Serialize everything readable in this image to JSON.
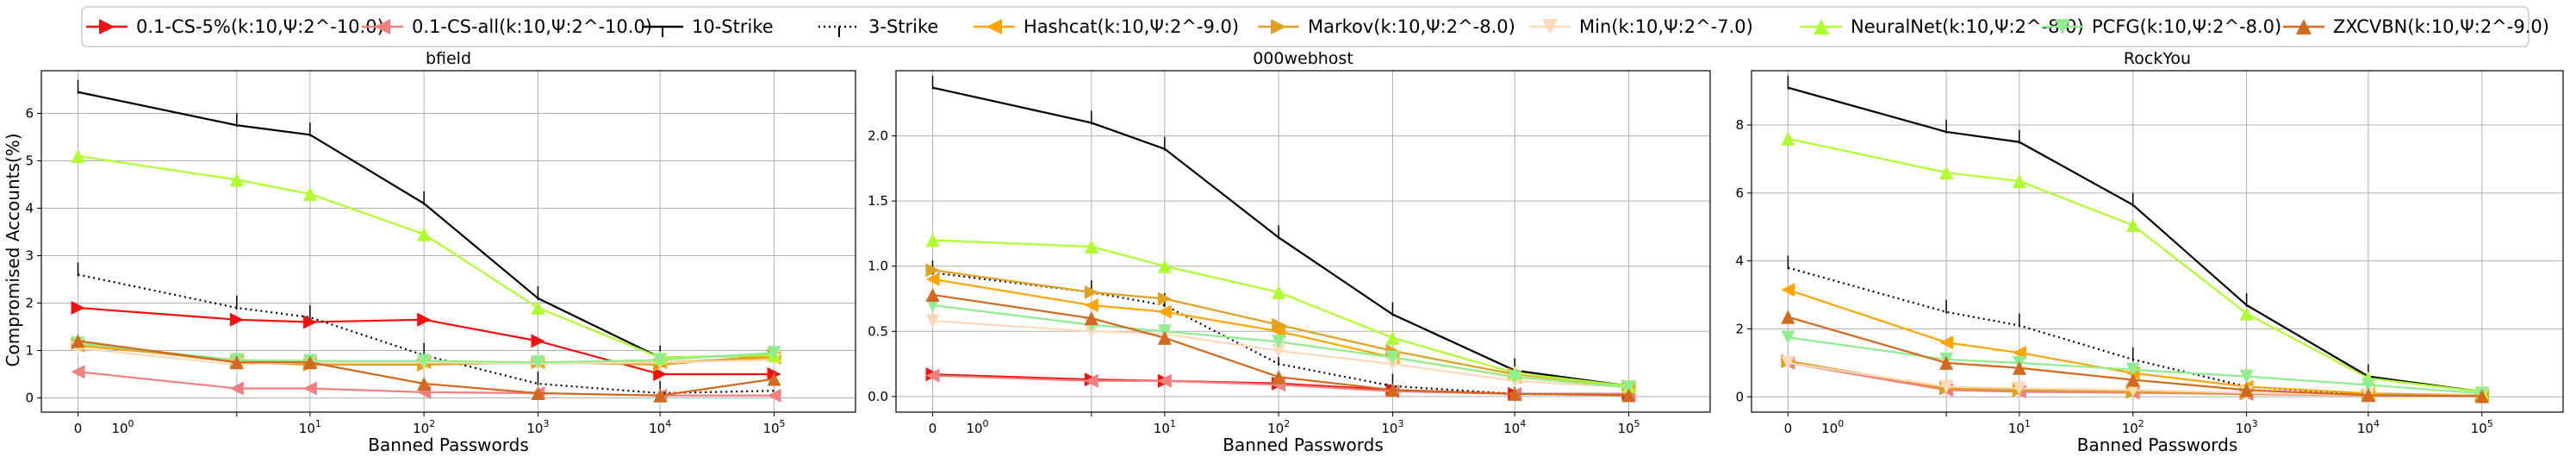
{
  "figure": {
    "ylabel": "Compromised Accounts(%)",
    "xlabel": "Banned Passwords"
  },
  "legend": [
    {
      "key": "cs5",
      "label": "0.1-CS-5%(k:10,Ψ:2^-10.0)",
      "color": "#f50f0f",
      "marker": "tri-right",
      "dash": false
    },
    {
      "key": "csall",
      "label": "0.1-CS-all(k:10,Ψ:2^-10.0)",
      "color": "#f08080",
      "marker": "tri-left",
      "dash": false
    },
    {
      "key": "s10",
      "label": "10-Strike",
      "color": "#000000",
      "marker": "none",
      "dash": false
    },
    {
      "key": "s3",
      "label": "3-Strike",
      "color": "#000000",
      "marker": "none",
      "dash": true
    },
    {
      "key": "hashcat",
      "label": "Hashcat(k:10,Ψ:2^-9.0)",
      "color": "#ffa500",
      "marker": "tri-left",
      "dash": false
    },
    {
      "key": "markov",
      "label": "Markov(k:10,Ψ:2^-8.0)",
      "color": "#e0a020",
      "marker": "tri-right",
      "dash": false
    },
    {
      "key": "min",
      "label": "Min(k:10,Ψ:2^-7.0)",
      "color": "#ffdab9",
      "marker": "tri-down",
      "dash": false
    },
    {
      "key": "neural",
      "label": "NeuralNet(k:10,Ψ:2^-8.0)",
      "color": "#adff2f",
      "marker": "tri-up",
      "dash": false
    },
    {
      "key": "pcfg",
      "label": "PCFG(k:10,Ψ:2^-8.0)",
      "color": "#90ee90",
      "marker": "tri-down",
      "dash": false
    },
    {
      "key": "zxcvbn",
      "label": "ZXCVBN(k:10,Ψ:2^-9.0)",
      "color": "#d2691e",
      "marker": "tri-up",
      "dash": false
    }
  ],
  "chart_data": [
    {
      "type": "line",
      "title": "bfield",
      "ylabel": "Compromised Accounts(%)",
      "xlabel": "Banned Passwords",
      "x_scale": "symlog",
      "x": [
        0,
        5,
        10,
        100,
        1000,
        10000,
        100000
      ],
      "x_ticks": [
        "0",
        "10^0",
        "10^1",
        "10^2",
        "10^3",
        "10^4",
        "10^5"
      ],
      "y_ticks": [
        0,
        1,
        2,
        3,
        4,
        5,
        6
      ],
      "ylim": [
        -0.3,
        6.9
      ],
      "grid": true,
      "series": [
        {
          "name": "0.1-CS-5%(k:10,Ψ:2^-10.0)",
          "values": [
            1.9,
            1.65,
            1.6,
            1.65,
            1.2,
            0.5,
            0.5
          ]
        },
        {
          "name": "0.1-CS-all(k:10,Ψ:2^-10.0)",
          "values": [
            0.55,
            0.2,
            0.2,
            0.12,
            0.1,
            0.05,
            0.05
          ]
        },
        {
          "name": "10-Strike",
          "values": [
            6.45,
            5.75,
            5.55,
            4.1,
            2.1,
            0.85,
            0.9
          ]
        },
        {
          "name": "3-Strike",
          "values": [
            2.6,
            1.9,
            1.7,
            0.9,
            0.3,
            0.1,
            0.15
          ]
        },
        {
          "name": "Hashcat(k:10,Ψ:2^-9.0)",
          "values": [
            1.1,
            0.8,
            0.75,
            0.75,
            0.75,
            0.75,
            0.85
          ]
        },
        {
          "name": "Markov(k:10,Ψ:2^-8.0)",
          "values": [
            1.15,
            0.75,
            0.7,
            0.7,
            0.75,
            0.7,
            0.9
          ]
        },
        {
          "name": "Min(k:10,Ψ:2^-7.0)",
          "values": [
            1.05,
            0.7,
            0.75,
            0.75,
            0.72,
            0.75,
            0.8
          ]
        },
        {
          "name": "NeuralNet(k:10,Ψ:2^-8.0)",
          "values": [
            5.1,
            4.6,
            4.3,
            3.45,
            1.9,
            0.85,
            0.9
          ]
        },
        {
          "name": "PCFG(k:10,Ψ:2^-8.0)",
          "values": [
            1.15,
            0.8,
            0.78,
            0.78,
            0.75,
            0.8,
            0.95
          ]
        },
        {
          "name": "ZXCVBN(k:10,Ψ:2^-9.0)",
          "values": [
            1.2,
            0.75,
            0.75,
            0.3,
            0.1,
            0.05,
            0.4
          ]
        }
      ]
    },
    {
      "type": "line",
      "title": "000webhost",
      "ylabel": "",
      "xlabel": "Banned Passwords",
      "x_scale": "symlog",
      "x": [
        0,
        5,
        10,
        100,
        1000,
        10000,
        100000
      ],
      "x_ticks": [
        "0",
        "10^0",
        "10^1",
        "10^2",
        "10^3",
        "10^4",
        "10^5"
      ],
      "y_ticks": [
        0.0,
        0.5,
        1.0,
        1.5,
        2.0
      ],
      "ylim": [
        -0.12,
        2.5
      ],
      "grid": true,
      "series": [
        {
          "name": "0.1-CS-5%(k:10,Ψ:2^-10.0)",
          "values": [
            0.17,
            0.13,
            0.12,
            0.1,
            0.05,
            0.02,
            0.02
          ]
        },
        {
          "name": "0.1-CS-all(k:10,Ψ:2^-10.0)",
          "values": [
            0.16,
            0.12,
            0.12,
            0.09,
            0.04,
            0.02,
            0.02
          ]
        },
        {
          "name": "10-Strike",
          "values": [
            2.37,
            2.1,
            1.9,
            1.22,
            0.63,
            0.2,
            0.08
          ]
        },
        {
          "name": "3-Strike",
          "values": [
            0.95,
            0.8,
            0.7,
            0.25,
            0.08,
            0.02,
            0.01
          ]
        },
        {
          "name": "Hashcat(k:10,Ψ:2^-9.0)",
          "values": [
            0.9,
            0.7,
            0.65,
            0.5,
            0.3,
            0.15,
            0.07
          ]
        },
        {
          "name": "Markov(k:10,Ψ:2^-8.0)",
          "values": [
            0.97,
            0.8,
            0.75,
            0.55,
            0.35,
            0.17,
            0.08
          ]
        },
        {
          "name": "Min(k:10,Ψ:2^-7.0)",
          "values": [
            0.58,
            0.5,
            0.48,
            0.35,
            0.25,
            0.12,
            0.07
          ]
        },
        {
          "name": "NeuralNet(k:10,Ψ:2^-8.0)",
          "values": [
            1.2,
            1.15,
            1.0,
            0.8,
            0.45,
            0.18,
            0.08
          ]
        },
        {
          "name": "PCFG(k:10,Ψ:2^-8.0)",
          "values": [
            0.7,
            0.55,
            0.5,
            0.42,
            0.3,
            0.15,
            0.07
          ]
        },
        {
          "name": "ZXCVBN(k:10,Ψ:2^-9.0)",
          "values": [
            0.78,
            0.6,
            0.45,
            0.15,
            0.05,
            0.02,
            0.01
          ]
        }
      ]
    },
    {
      "type": "line",
      "title": "RockYou",
      "ylabel": "",
      "xlabel": "Banned Passwords",
      "x_scale": "symlog",
      "x": [
        0,
        5,
        10,
        100,
        1000,
        10000,
        100000
      ],
      "x_ticks": [
        "0",
        "10^0",
        "10^1",
        "10^2",
        "10^3",
        "10^4",
        "10^5"
      ],
      "y_ticks": [
        0,
        2,
        4,
        6,
        8
      ],
      "ylim": [
        -0.45,
        9.6
      ],
      "grid": true,
      "series": [
        {
          "name": "0.1-CS-5%(k:10,Ψ:2^-10.0)",
          "values": [
            1.05,
            0.25,
            0.2,
            0.15,
            0.1,
            0.05,
            0.05
          ]
        },
        {
          "name": "0.1-CS-all(k:10,Ψ:2^-10.0)",
          "values": [
            1.0,
            0.2,
            0.15,
            0.12,
            0.08,
            0.04,
            0.04
          ]
        },
        {
          "name": "10-Strike",
          "values": [
            9.1,
            7.8,
            7.5,
            5.65,
            2.7,
            0.6,
            0.15
          ]
        },
        {
          "name": "3-Strike",
          "values": [
            3.8,
            2.5,
            2.1,
            1.1,
            0.3,
            0.06,
            0.03
          ]
        },
        {
          "name": "Hashcat(k:10,Ψ:2^-9.0)",
          "values": [
            3.15,
            1.6,
            1.3,
            0.7,
            0.3,
            0.1,
            0.05
          ]
        },
        {
          "name": "Markov(k:10,Ψ:2^-8.0)",
          "values": [
            1.05,
            0.25,
            0.2,
            0.15,
            0.1,
            0.05,
            0.05
          ]
        },
        {
          "name": "Min(k:10,Ψ:2^-7.0)",
          "values": [
            1.0,
            0.3,
            0.25,
            0.2,
            0.12,
            0.05,
            0.04
          ]
        },
        {
          "name": "NeuralNet(k:10,Ψ:2^-8.0)",
          "values": [
            7.6,
            6.6,
            6.35,
            5.05,
            2.45,
            0.55,
            0.15
          ]
        },
        {
          "name": "PCFG(k:10,Ψ:2^-8.0)",
          "values": [
            1.75,
            1.1,
            1.0,
            0.8,
            0.6,
            0.35,
            0.1
          ]
        },
        {
          "name": "ZXCVBN(k:10,Ψ:2^-9.0)",
          "values": [
            2.35,
            1.0,
            0.85,
            0.5,
            0.2,
            0.05,
            0.02
          ]
        }
      ]
    }
  ]
}
